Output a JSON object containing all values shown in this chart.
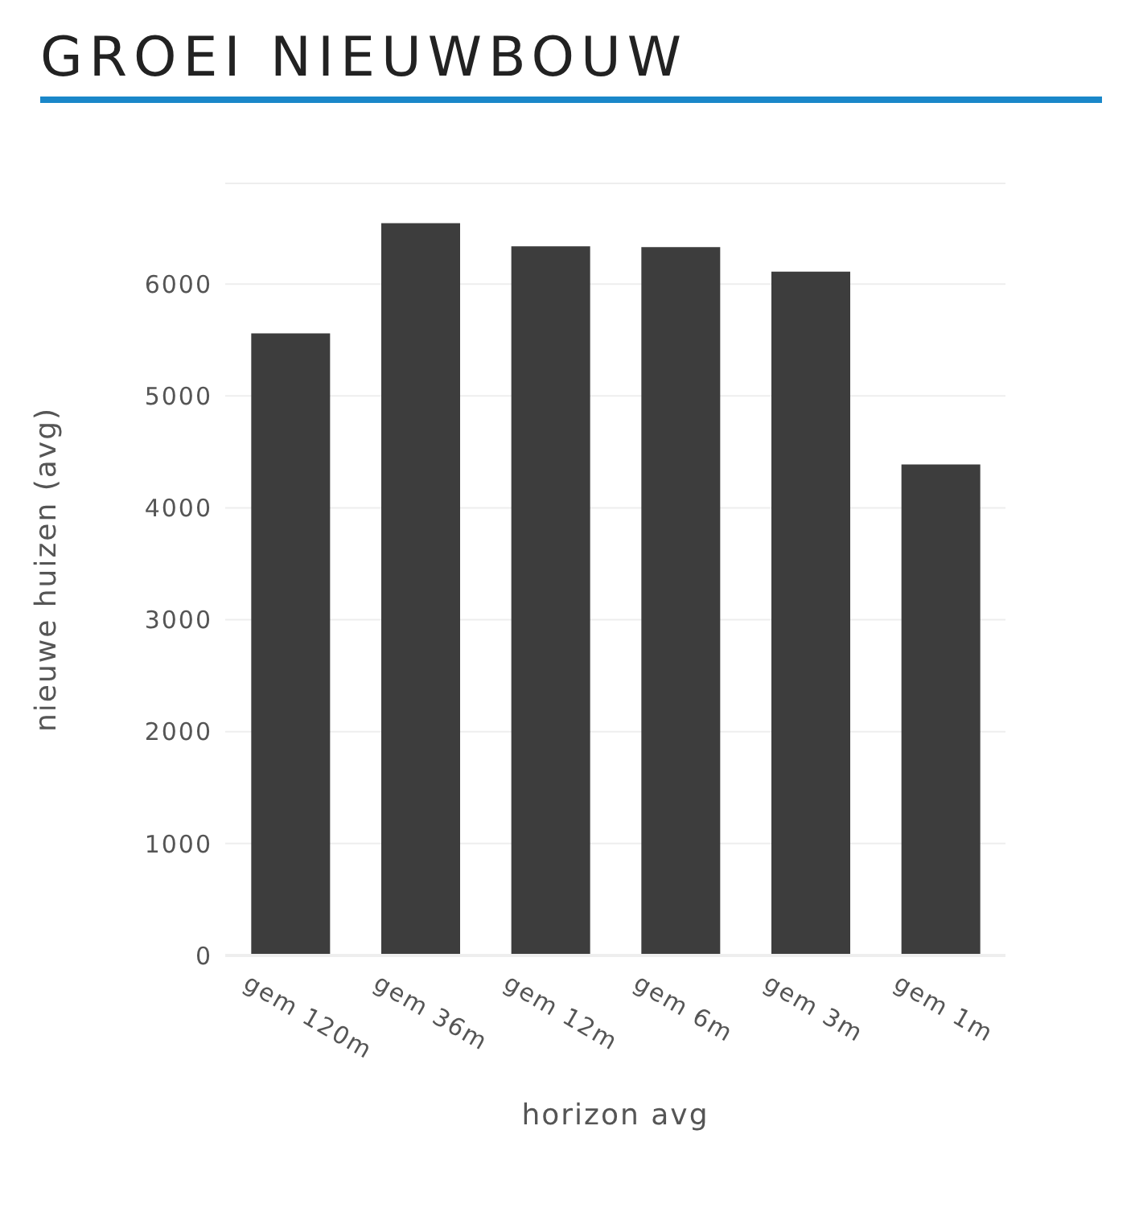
{
  "chart_data": {
    "type": "bar",
    "title": "GROEI NIEUWBOUW",
    "xlabel": "horizon avg",
    "ylabel": "nieuwe huizen (avg)",
    "categories": [
      "gem 120m",
      "gem 36m",
      "gem 12m",
      "gem 6m",
      "gem 3m",
      "gem 1m"
    ],
    "values": [
      5560,
      6545,
      6337,
      6331,
      6112,
      4388
    ],
    "color": "#3d3d3d",
    "ylim": [
      0,
      6900
    ],
    "yticks": [
      0,
      1000,
      2000,
      3000,
      4000,
      5000,
      6000
    ],
    "grid": "y"
  }
}
